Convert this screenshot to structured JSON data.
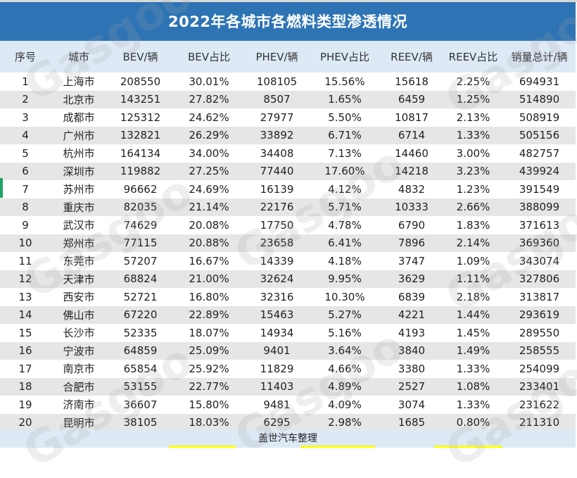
{
  "title": "2022年各城市各燃料类型渗透情况",
  "columns": [
    "序号",
    "城市",
    "BEV/辆",
    "BEV占比",
    "PHEV/辆",
    "PHEV占比",
    "REEV/辆",
    "REEV占比",
    "销量总计/辆"
  ],
  "rows": [
    [
      "1",
      "上海市",
      "208550",
      "30.01%",
      "108105",
      "15.56%",
      "15618",
      "2.25%",
      "694931"
    ],
    [
      "2",
      "北京市",
      "143251",
      "27.82%",
      "8507",
      "1.65%",
      "6459",
      "1.25%",
      "514890"
    ],
    [
      "3",
      "成都市",
      "125312",
      "24.62%",
      "27977",
      "5.50%",
      "10817",
      "2.13%",
      "508919"
    ],
    [
      "4",
      "广州市",
      "132821",
      "26.29%",
      "33892",
      "6.71%",
      "6714",
      "1.33%",
      "505156"
    ],
    [
      "5",
      "杭州市",
      "164134",
      "34.00%",
      "34408",
      "7.13%",
      "14460",
      "3.00%",
      "482757"
    ],
    [
      "6",
      "深圳市",
      "119882",
      "27.25%",
      "77440",
      "17.60%",
      "14218",
      "3.23%",
      "439924"
    ],
    [
      "7",
      "苏州市",
      "96662",
      "24.69%",
      "16139",
      "4.12%",
      "4832",
      "1.23%",
      "391549"
    ],
    [
      "8",
      "重庆市",
      "82035",
      "21.14%",
      "22176",
      "5.71%",
      "10333",
      "2.66%",
      "388099"
    ],
    [
      "9",
      "武汉市",
      "74629",
      "20.08%",
      "17750",
      "4.78%",
      "6790",
      "1.83%",
      "371613"
    ],
    [
      "10",
      "郑州市",
      "77115",
      "20.88%",
      "23658",
      "6.41%",
      "7896",
      "2.14%",
      "369360"
    ],
    [
      "11",
      "东莞市",
      "57207",
      "16.67%",
      "14339",
      "4.18%",
      "3747",
      "1.09%",
      "343074"
    ],
    [
      "12",
      "天津市",
      "68824",
      "21.00%",
      "32624",
      "9.95%",
      "3629",
      "1.11%",
      "327806"
    ],
    [
      "13",
      "西安市",
      "52721",
      "16.80%",
      "32316",
      "10.30%",
      "6839",
      "2.18%",
      "313817"
    ],
    [
      "14",
      "佛山市",
      "67220",
      "22.89%",
      "15463",
      "5.27%",
      "4221",
      "1.44%",
      "293619"
    ],
    [
      "15",
      "长沙市",
      "52335",
      "18.07%",
      "14934",
      "5.16%",
      "4193",
      "1.45%",
      "289550"
    ],
    [
      "16",
      "宁波市",
      "64859",
      "25.09%",
      "9401",
      "3.64%",
      "3840",
      "1.49%",
      "258555"
    ],
    [
      "17",
      "南京市",
      "65854",
      "25.92%",
      "11829",
      "4.66%",
      "3380",
      "1.33%",
      "254099"
    ],
    [
      "18",
      "合肥市",
      "53155",
      "22.77%",
      "11403",
      "4.89%",
      "2527",
      "1.08%",
      "233401"
    ],
    [
      "19",
      "济南市",
      "36607",
      "15.80%",
      "9481",
      "4.09%",
      "3074",
      "1.33%",
      "231622"
    ],
    [
      "20",
      "昆明市",
      "38105",
      "18.03%",
      "6295",
      "2.98%",
      "1685",
      "0.80%",
      "211310"
    ]
  ],
  "footer": "盖世汽车整理",
  "watermark": "Gasgoo",
  "colors": {
    "header_bg": "#2e74b5",
    "column_header_bg": "#ddeaf6",
    "stripe_bg": "#e6e6e6",
    "selection_marker": "#21a366"
  }
}
